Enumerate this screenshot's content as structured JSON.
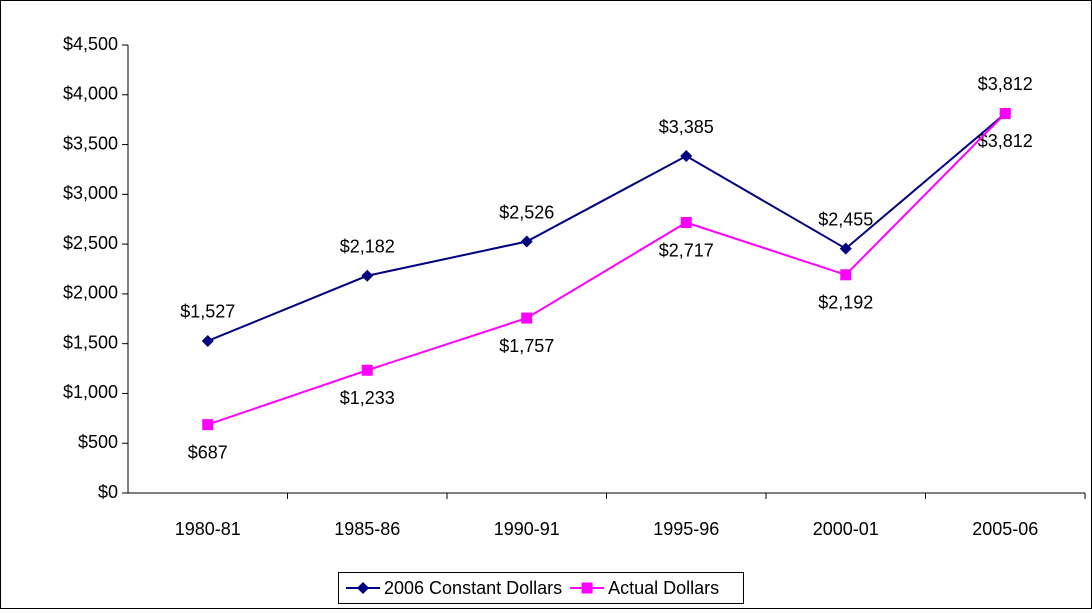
{
  "chart_data": {
    "type": "line",
    "categories": [
      "1980-81",
      "1985-86",
      "1990-91",
      "1995-96",
      "2000-01",
      "2005-06"
    ],
    "series": [
      {
        "name": "2006 Constant Dollars",
        "color": "#000080",
        "marker": "diamond",
        "values": [
          1527,
          2182,
          2526,
          3385,
          2455,
          3812
        ],
        "value_labels": [
          "$1,527",
          "$2,182",
          "$2,526",
          "$3,385",
          "$2,455",
          "$3,812"
        ]
      },
      {
        "name": "Actual Dollars",
        "color": "#ff00ff",
        "marker": "square",
        "values": [
          687,
          1233,
          1757,
          2717,
          2192,
          3812
        ],
        "value_labels": [
          "$687",
          "$1,233",
          "$1,757",
          "$2,717",
          "$2,192",
          "$3,812"
        ]
      }
    ],
    "ylim": [
      0,
      4500
    ],
    "yticks": [
      {
        "value": 0,
        "label": "$0"
      },
      {
        "value": 500,
        "label": "$500"
      },
      {
        "value": 1000,
        "label": "$1,000"
      },
      {
        "value": 1500,
        "label": "$1,500"
      },
      {
        "value": 2000,
        "label": "$2,000"
      },
      {
        "value": 2500,
        "label": "$2,500"
      },
      {
        "value": 3000,
        "label": "$3,000"
      },
      {
        "value": 3500,
        "label": "$3,500"
      },
      {
        "value": 4000,
        "label": "$4,000"
      },
      {
        "value": 4500,
        "label": "$4,500"
      }
    ],
    "legend": "bottom"
  }
}
